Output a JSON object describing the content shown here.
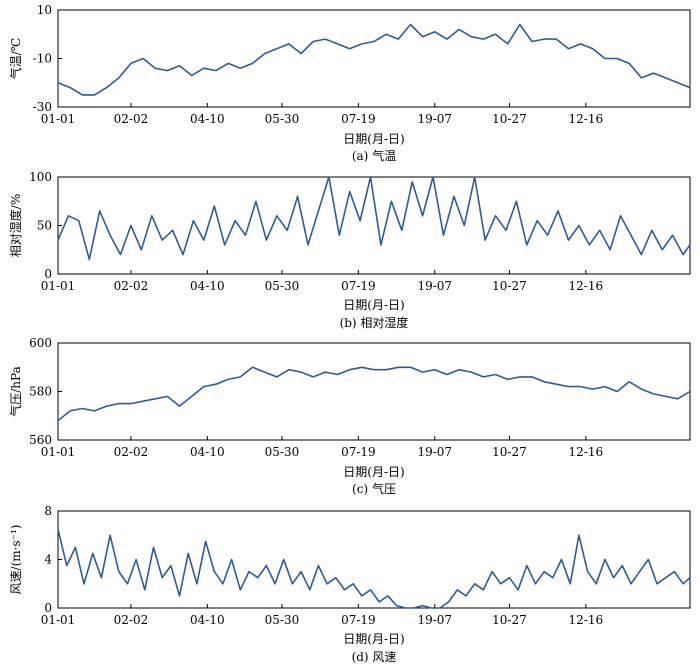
{
  "chart_data": [
    {
      "type": "line",
      "caption": "(a) 气温",
      "ylabel": "气温/℃",
      "xlabel": "日期(月-日)",
      "ylim": [
        -30,
        10
      ],
      "yticks": [
        10,
        -10,
        -30
      ],
      "xlim": [
        1,
        365
      ],
      "xticks": [
        {
          "label": "01-01",
          "x": 1
        },
        {
          "label": "02-02",
          "x": 43
        },
        {
          "label": "04-10",
          "x": 87
        },
        {
          "label": "05-30",
          "x": 130
        },
        {
          "label": "07-19",
          "x": 174
        },
        {
          "label": "19-07",
          "x": 218
        },
        {
          "label": "10-27",
          "x": 261
        },
        {
          "label": "12-16",
          "x": 305
        }
      ],
      "line_color": "#2b5d9c",
      "series": [
        {
          "x": [
            1,
            8,
            15,
            22,
            29,
            36,
            43,
            50,
            57,
            64,
            71,
            78,
            85,
            92,
            99,
            106,
            113,
            120,
            127,
            134,
            141,
            148,
            155,
            162,
            169,
            176,
            183,
            190,
            197,
            204,
            211,
            218,
            225,
            232,
            239,
            246,
            253,
            260,
            267,
            274,
            281,
            288,
            295,
            302,
            309,
            316,
            323,
            330,
            337,
            344,
            351,
            358,
            365
          ],
          "values": [
            -20,
            -22,
            -25,
            -25,
            -22,
            -18,
            -12,
            -10,
            -14,
            -15,
            -13,
            -17,
            -14,
            -15,
            -12,
            -14,
            -12,
            -8,
            -6,
            -4,
            -8,
            -3,
            -2,
            -4,
            -6,
            -4,
            -3,
            0,
            -2,
            4,
            -1,
            1,
            -2,
            2,
            -1,
            -2,
            0,
            -4,
            4,
            -3,
            -2,
            -2,
            -6,
            -4,
            -6,
            -10,
            -10,
            -12,
            -18,
            -16,
            -18,
            -20,
            -22
          ]
        }
      ]
    },
    {
      "type": "line",
      "caption": "(b) 相对湿度",
      "ylabel": "相对湿度/%",
      "xlabel": "日期(月-日)",
      "ylim": [
        0,
        100
      ],
      "yticks": [
        100,
        50,
        0
      ],
      "xlim": [
        1,
        365
      ],
      "xticks": [
        {
          "label": "01-01",
          "x": 1
        },
        {
          "label": "02-02",
          "x": 43
        },
        {
          "label": "04-10",
          "x": 87
        },
        {
          "label": "05-30",
          "x": 130
        },
        {
          "label": "07-19",
          "x": 174
        },
        {
          "label": "19-07",
          "x": 218
        },
        {
          "label": "10-27",
          "x": 261
        },
        {
          "label": "12-16",
          "x": 305
        }
      ],
      "line_color": "#2b5d9c",
      "series": [
        {
          "x": [
            1,
            7,
            13,
            19,
            25,
            31,
            37,
            43,
            49,
            55,
            61,
            67,
            73,
            79,
            85,
            91,
            97,
            103,
            109,
            115,
            121,
            127,
            133,
            139,
            145,
            151,
            157,
            163,
            169,
            175,
            181,
            187,
            193,
            199,
            205,
            211,
            217,
            223,
            229,
            235,
            241,
            247,
            253,
            259,
            265,
            271,
            277,
            283,
            289,
            295,
            301,
            307,
            313,
            319,
            325,
            331,
            337,
            343,
            349,
            355,
            361,
            365
          ],
          "values": [
            35,
            60,
            55,
            15,
            65,
            40,
            20,
            50,
            25,
            60,
            35,
            45,
            20,
            55,
            35,
            70,
            30,
            55,
            40,
            75,
            35,
            60,
            45,
            80,
            30,
            65,
            100,
            40,
            85,
            55,
            100,
            30,
            75,
            45,
            95,
            60,
            100,
            40,
            80,
            50,
            100,
            35,
            60,
            45,
            75,
            30,
            55,
            40,
            65,
            35,
            50,
            30,
            45,
            25,
            60,
            40,
            20,
            45,
            25,
            40,
            20,
            30
          ]
        }
      ]
    },
    {
      "type": "line",
      "caption": "(c) 气压",
      "ylabel": "气压/hPa",
      "xlabel": "日期(月-日)",
      "ylim": [
        560,
        600
      ],
      "yticks": [
        600,
        580,
        560
      ],
      "xlim": [
        1,
        365
      ],
      "xticks": [
        {
          "label": "01-01",
          "x": 1
        },
        {
          "label": "02-02",
          "x": 43
        },
        {
          "label": "04-10",
          "x": 87
        },
        {
          "label": "05-30",
          "x": 130
        },
        {
          "label": "07-19",
          "x": 174
        },
        {
          "label": "19-07",
          "x": 218
        },
        {
          "label": "10-27",
          "x": 261
        },
        {
          "label": "12-16",
          "x": 305
        }
      ],
      "line_color": "#2b5d9c",
      "series": [
        {
          "x": [
            1,
            8,
            15,
            22,
            29,
            36,
            43,
            50,
            57,
            64,
            71,
            78,
            85,
            92,
            99,
            106,
            113,
            120,
            127,
            134,
            141,
            148,
            155,
            162,
            169,
            176,
            183,
            190,
            197,
            204,
            211,
            218,
            225,
            232,
            239,
            246,
            253,
            260,
            267,
            274,
            281,
            288,
            295,
            302,
            309,
            316,
            323,
            330,
            337,
            344,
            351,
            358,
            365
          ],
          "values": [
            568,
            572,
            573,
            572,
            574,
            575,
            575,
            576,
            577,
            578,
            574,
            578,
            582,
            583,
            585,
            586,
            590,
            588,
            586,
            589,
            588,
            586,
            588,
            587,
            589,
            590,
            589,
            589,
            590,
            590,
            588,
            589,
            587,
            589,
            588,
            586,
            587,
            585,
            586,
            586,
            584,
            583,
            582,
            582,
            581,
            582,
            580,
            584,
            581,
            579,
            578,
            577,
            580
          ]
        }
      ]
    },
    {
      "type": "line",
      "caption": "(d) 风速",
      "ylabel": "风速/(m·s⁻¹)",
      "xlabel": "日期(月-日)",
      "ylim": [
        0,
        8
      ],
      "yticks": [
        8,
        4,
        0
      ],
      "xlim": [
        1,
        365
      ],
      "xticks": [
        {
          "label": "01-01",
          "x": 1
        },
        {
          "label": "02-02",
          "x": 43
        },
        {
          "label": "04-10",
          "x": 87
        },
        {
          "label": "05-30",
          "x": 130
        },
        {
          "label": "07-19",
          "x": 174
        },
        {
          "label": "19-07",
          "x": 218
        },
        {
          "label": "10-27",
          "x": 261
        },
        {
          "label": "12-16",
          "x": 305
        }
      ],
      "line_color": "#2b5d9c",
      "series": [
        {
          "x": [
            1,
            6,
            11,
            16,
            21,
            26,
            31,
            36,
            41,
            46,
            51,
            56,
            61,
            66,
            71,
            76,
            81,
            86,
            91,
            96,
            101,
            106,
            111,
            116,
            121,
            126,
            131,
            136,
            141,
            146,
            151,
            156,
            161,
            166,
            171,
            176,
            181,
            186,
            191,
            196,
            201,
            206,
            211,
            216,
            221,
            226,
            231,
            236,
            241,
            246,
            251,
            256,
            261,
            266,
            271,
            276,
            281,
            286,
            291,
            296,
            301,
            306,
            311,
            316,
            321,
            326,
            331,
            336,
            341,
            346,
            351,
            356,
            361,
            365
          ],
          "values": [
            6.5,
            3.5,
            5,
            2,
            4.5,
            2.5,
            6,
            3,
            2,
            4,
            1.5,
            5,
            2.5,
            3.5,
            1,
            4.5,
            2,
            5.5,
            3,
            2,
            4,
            1.5,
            3,
            2.5,
            3.5,
            2,
            4,
            2,
            3,
            1.5,
            3.5,
            2,
            2.5,
            1.5,
            2,
            1,
            1.5,
            0.5,
            1,
            0.2,
            0,
            0,
            0.2,
            0,
            0,
            0.5,
            1.5,
            1,
            2,
            1.5,
            3,
            2,
            2.5,
            1.5,
            3.5,
            2,
            3,
            2.5,
            4,
            2,
            6,
            3,
            2,
            4,
            2.5,
            3.5,
            2,
            3,
            4,
            2,
            2.5,
            3,
            2,
            2.5
          ]
        }
      ]
    }
  ]
}
